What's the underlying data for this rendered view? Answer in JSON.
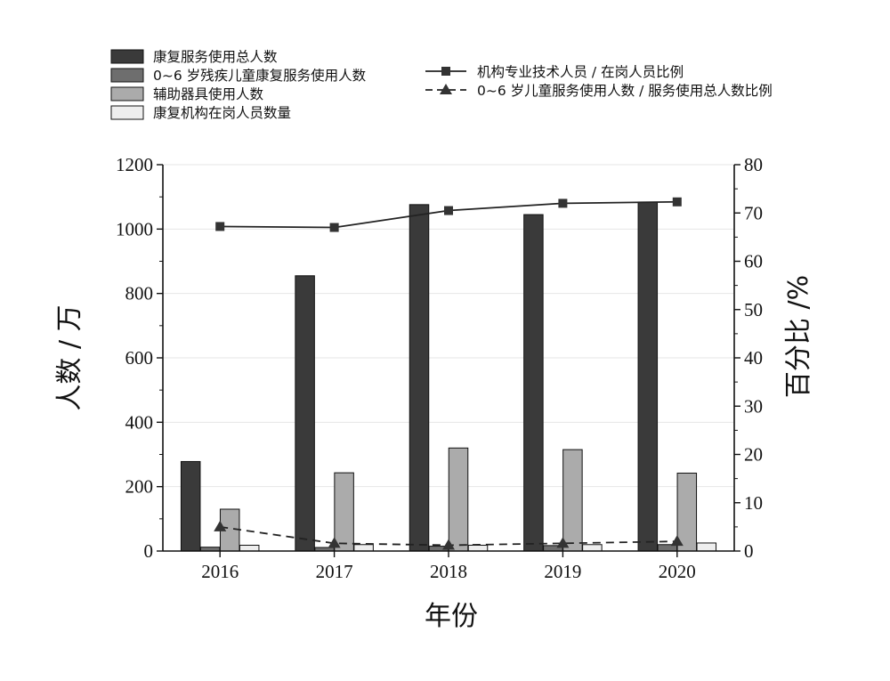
{
  "chart_data": {
    "type": "bar",
    "categories": [
      "2016",
      "2017",
      "2018",
      "2019",
      "2020"
    ],
    "series": [
      {
        "name": "康复服务使用总人数",
        "kind": "bar",
        "axis": "left",
        "color": "#3a3a3a",
        "values": [
          278,
          855,
          1076,
          1045,
          1084
        ]
      },
      {
        "name": "0~6 岁残疾儿童康复服务使用人数",
        "kind": "bar",
        "axis": "left",
        "color": "#6e6e6e",
        "values": [
          12,
          11,
          15,
          17,
          20
        ]
      },
      {
        "name": "辅助器具使用人数",
        "kind": "bar",
        "axis": "left",
        "color": "#ababab",
        "values": [
          130,
          243,
          320,
          315,
          242
        ]
      },
      {
        "name": "康复机构在岗人员数量",
        "kind": "bar",
        "axis": "left",
        "color": "#eeeeee",
        "values": [
          18,
          20,
          18,
          20,
          25
        ]
      },
      {
        "name": "机构专业技术人员 / 在岗人员比例",
        "kind": "line",
        "axis": "right",
        "marker": "square",
        "style": "solid",
        "values": [
          67.2,
          67.0,
          70.5,
          72.0,
          72.3
        ]
      },
      {
        "name": "0~6 岁儿童服务使用人数 / 服务使用总人数比例",
        "kind": "line",
        "axis": "right",
        "marker": "triangle",
        "style": "dashed",
        "values": [
          5.0,
          1.6,
          1.2,
          1.6,
          2.0
        ]
      }
    ],
    "xlabel": "年份",
    "ylabel": "人数 / 万",
    "y2label": "百分比 /%",
    "ylim": [
      0,
      1200
    ],
    "y2lim": [
      0,
      80
    ],
    "yticks": [
      0,
      200,
      400,
      600,
      800,
      1000,
      1200
    ],
    "y2ticks": [
      0,
      10,
      20,
      30,
      40,
      50,
      60,
      70,
      80
    ],
    "grid": true,
    "legend": "top"
  }
}
